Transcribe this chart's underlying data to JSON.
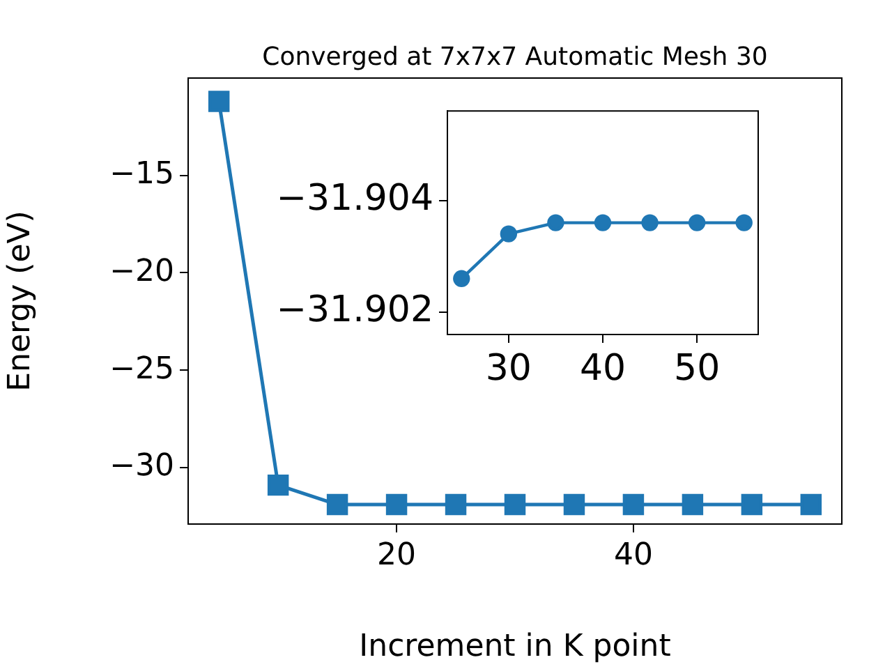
{
  "chart_data": [
    {
      "type": "line",
      "title": "Converged at 7x7x7 Automatic Mesh 30",
      "xlabel": "Increment in K point",
      "ylabel": "Energy (eV)",
      "x": [
        5,
        10,
        15,
        20,
        25,
        30,
        35,
        40,
        45,
        50,
        55
      ],
      "series": [
        {
          "color": "#1f77b4",
          "values": [
            -11.2,
            -30.9,
            -31.9,
            -31.9,
            -31.9,
            -31.9,
            -31.9,
            -31.9,
            -31.9,
            -31.9,
            -31.9
          ]
        }
      ],
      "xlim": [
        2.4,
        57.6
      ],
      "ylim": [
        -32.9,
        -10.0
      ],
      "xticks": [
        20,
        40
      ],
      "yticks": [
        -15,
        -20,
        -25,
        -30
      ],
      "marker": "square",
      "grid": false,
      "legend": false
    },
    {
      "type": "line",
      "x": [
        25,
        30,
        35,
        40,
        45,
        50,
        55
      ],
      "series": [
        {
          "color": "#1f77b4",
          "values": [
            -31.9026,
            -31.9034,
            -31.9036,
            -31.9036,
            -31.9036,
            -31.9036,
            -31.9036
          ]
        }
      ],
      "xlim": [
        23.5,
        56.5
      ],
      "ylim": [
        -31.9016,
        -31.9056
      ],
      "xticks": [
        30,
        40,
        50
      ],
      "yticks": [
        -31.904,
        -31.902
      ],
      "marker": "circle",
      "grid": false,
      "legend": false
    }
  ]
}
